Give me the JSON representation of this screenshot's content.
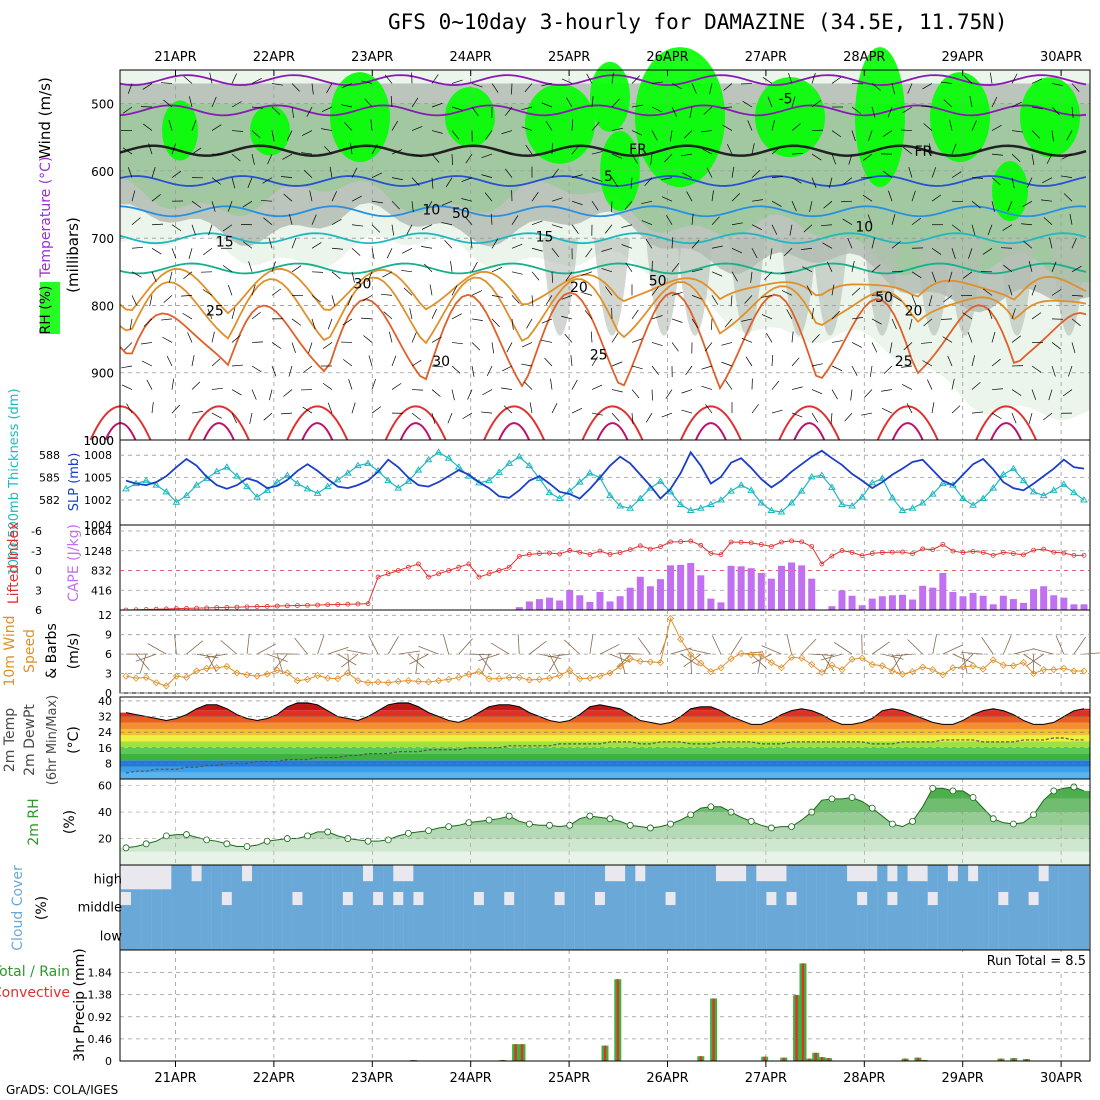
{
  "header": {
    "title": "GFS 0~10day 3-hourly for DAMAZINE (34.5E, 11.75N)",
    "footer": "GrADS: COLA/IGES"
  },
  "colors": {
    "rh_green_light": "#e8f3e8",
    "rh_green_mid": "#9ec89e",
    "rh_green_dark": "#3cb43c",
    "rh_bright": "#00ff00",
    "rh_gray": "#b4bcb4",
    "thickness": "#20b8c0",
    "slp": "#1a3ec8",
    "lifted_index": "#e03030",
    "cape": "#c070f0",
    "wind10m": "#e0902a",
    "cloud": "#6aa8d8",
    "cloud_empty": "#e8e8ee",
    "precip_total": "#3cb43c",
    "precip_conv": "#e03030"
  },
  "dates": [
    "21APR",
    "22APR",
    "23APR",
    "24APR",
    "25APR",
    "26APR",
    "27APR",
    "28APR",
    "29APR",
    "30APR"
  ],
  "chart_data": [
    {
      "type": "contour",
      "panel": "upper_air",
      "ylabel_parts": [
        "RH (%)",
        "Temperature (°C)",
        "Wind (m/s)"
      ],
      "y_axis_label": "(millibars)",
      "yticks": [
        500,
        600,
        700,
        800,
        900,
        1000
      ],
      "ylim": [
        450,
        1000
      ],
      "freezing_label": "FR",
      "contour_labels": [
        {
          "text": "-5",
          "day": 6.2,
          "p": 500
        },
        {
          "text": "FR",
          "day": 4.7,
          "p": 575
        },
        {
          "text": "FR",
          "day": 7.6,
          "p": 578
        },
        {
          "text": "5",
          "day": 4.4,
          "p": 615
        },
        {
          "text": "10",
          "day": 2.6,
          "p": 665
        },
        {
          "text": "10",
          "day": 7.0,
          "p": 690
        },
        {
          "text": "15",
          "day": 0.5,
          "p": 712
        },
        {
          "text": "15",
          "day": 3.75,
          "p": 705
        },
        {
          "text": "20",
          "day": 4.1,
          "p": 780
        },
        {
          "text": "20",
          "day": 7.5,
          "p": 815
        },
        {
          "text": "25",
          "day": 0.4,
          "p": 815
        },
        {
          "text": "25",
          "day": 4.3,
          "p": 880
        },
        {
          "text": "25",
          "day": 7.4,
          "p": 890
        },
        {
          "text": "30",
          "day": 2.7,
          "p": 890
        },
        {
          "text": "50",
          "day": 2.9,
          "p": 670
        },
        {
          "text": "30",
          "day": 1.9,
          "p": 775
        },
        {
          "text": "50",
          "day": 4.9,
          "p": 770
        },
        {
          "text": "50",
          "day": 7.2,
          "p": 795
        }
      ]
    },
    {
      "type": "line",
      "panel": "thickness_slp",
      "ylabel_left": "1000-500mb Thickness (dm)",
      "ylabel_right": "SLP (mb)",
      "yticks_left": [
        582,
        585,
        588
      ],
      "yticks_right": [
        1002,
        1005,
        1008
      ],
      "extra_tick": "1004",
      "series": [
        {
          "name": "Thickness",
          "values": [
            583.5,
            584.2,
            584.6,
            584.0,
            583.1,
            581.7,
            582.6,
            584.0,
            584.9,
            585.8,
            586.4,
            585.2,
            583.8,
            582.4,
            583.3,
            584.4,
            585.3,
            584.2,
            583.5,
            582.9,
            583.8,
            584.7,
            585.6,
            586.6,
            586.9,
            585.9,
            584.6,
            583.6,
            584.5,
            586.0,
            587.4,
            588.4,
            587.6,
            586.4,
            585.2,
            584.3,
            584.6,
            585.7,
            586.9,
            587.8,
            586.6,
            584.9,
            583.0,
            582.2,
            583.2,
            584.4,
            585.6,
            585.0,
            582.6,
            581.2,
            580.9,
            582.2,
            583.6,
            584.5,
            583.1,
            581.4,
            580.6,
            580.9,
            581.4,
            582.0,
            583.2,
            584.0,
            583.3,
            581.6,
            580.6,
            580.4,
            581.6,
            583.2,
            585.1,
            585.3,
            583.7,
            581.4,
            581.2,
            582.4,
            584.3,
            584.9,
            582.3,
            580.6,
            580.9,
            581.6,
            582.8,
            584.2,
            584.0,
            582.2,
            581.3,
            582.2,
            583.6,
            585.4,
            586.2,
            584.6,
            583.1,
            582.6,
            583.3,
            584.1,
            583.0,
            582.0
          ]
        },
        {
          "name": "SLP",
          "values": [
            1004.6,
            1004.2,
            1004.0,
            1004.4,
            1005.2,
            1006.4,
            1007.5,
            1006.6,
            1005.1,
            1004.0,
            1003.5,
            1004.0,
            1004.9,
            1004.5,
            1003.6,
            1003.9,
            1004.7,
            1005.9,
            1006.8,
            1005.9,
            1004.8,
            1003.8,
            1003.6,
            1004.0,
            1004.6,
            1005.8,
            1007.4,
            1006.4,
            1005.0,
            1004.0,
            1003.8,
            1004.4,
            1005.2,
            1006.0,
            1005.4,
            1004.4,
            1003.6,
            1002.5,
            1002.3,
            1003.3,
            1004.6,
            1005.2,
            1004.2,
            1003.1,
            1002.8,
            1002.2,
            1003.5,
            1005.0,
            1006.6,
            1007.8,
            1006.9,
            1005.4,
            1003.9,
            1002.2,
            1003.5,
            1005.6,
            1008.4,
            1006.6,
            1004.2,
            1005.1,
            1007.0,
            1007.6,
            1006.3,
            1004.8,
            1003.7,
            1004.6,
            1005.8,
            1006.8,
            1007.8,
            1008.6,
            1007.6,
            1006.7,
            1005.5,
            1004.6,
            1003.6,
            1004.4,
            1005.4,
            1006.2,
            1007.1,
            1007.4,
            1006.0,
            1004.6,
            1004.0,
            1005.4,
            1006.8,
            1007.5,
            1006.1,
            1004.4,
            1003.6,
            1003.3,
            1004.2,
            1005.2,
            1006.2,
            1007.4,
            1006.4,
            1006.2
          ]
        }
      ]
    },
    {
      "type": "bar",
      "panel": "cape_li",
      "ylabel_left": "Lifted Index",
      "ylabel_right": "CAPE (J/kg)",
      "yticks_left": [
        -6,
        -3,
        0,
        3,
        6
      ],
      "yticks_right": [
        416,
        832,
        1248,
        1664
      ],
      "cape_values": [
        0,
        0,
        0,
        0,
        0,
        0,
        0,
        0,
        0,
        0,
        0,
        0,
        0,
        0,
        0,
        0,
        0,
        0,
        0,
        0,
        0,
        0,
        0,
        0,
        0,
        0,
        0,
        0,
        0,
        0,
        0,
        0,
        0,
        0,
        0,
        0,
        0,
        0,
        0,
        60,
        180,
        230,
        260,
        200,
        420,
        310,
        170,
        380,
        180,
        290,
        470,
        700,
        500,
        650,
        940,
        950,
        990,
        730,
        240,
        160,
        930,
        920,
        880,
        780,
        660,
        930,
        1000,
        940,
        660,
        0,
        80,
        410,
        300,
        100,
        240,
        290,
        310,
        320,
        220,
        510,
        470,
        780,
        380,
        290,
        360,
        300,
        120,
        300,
        230,
        150,
        440,
        500,
        310,
        260,
        120,
        120
      ]
    },
    {
      "type": "line",
      "panel": "wind10m",
      "ylabel_parts": [
        "10m Wind",
        "Speed",
        "& Barbs",
        "(m/s)"
      ],
      "yticks": [
        0,
        3,
        6,
        9,
        12
      ],
      "series": [
        {
          "name": "10m Wind Speed",
          "values": [
            2.6,
            2.3,
            2.4,
            1.6,
            1.1,
            2.6,
            2.4,
            3.4,
            3.8,
            3.9,
            4.1,
            3.1,
            2.8,
            2.6,
            2.9,
            3.5,
            3.1,
            1.9,
            2.1,
            2.7,
            2.3,
            2.2,
            3.1,
            1.9,
            1.6,
            1.7,
            1.6,
            1.8,
            1.9,
            1.8,
            1.7,
            1.9,
            2.1,
            2.4,
            2.9,
            3.3,
            2.2,
            2.2,
            2.4,
            2.4,
            2.0,
            2.1,
            2.3,
            2.7,
            3.5,
            2.2,
            2.3,
            2.6,
            3.1,
            4.1,
            5.3,
            4.9,
            4.8,
            4.7,
            11.5,
            8.3,
            5.9,
            4.6,
            3.3,
            3.9,
            5.3,
            6.1,
            5.9,
            5.9,
            4.7,
            3.9,
            5.5,
            5.4,
            4.4,
            3.2,
            4.3,
            3.6,
            5.2,
            5.4,
            4.4,
            4.2,
            3.4,
            2.9,
            3.3,
            4.0,
            3.6,
            2.8,
            3.9,
            4.0,
            4.2,
            3.7,
            5.1,
            4.3,
            4.2,
            4.7,
            3.0,
            3.6,
            3.6,
            3.8,
            3.4,
            3.4
          ]
        }
      ]
    },
    {
      "type": "area",
      "panel": "temp2m",
      "ylabel_parts": [
        "2m Temp",
        "2m DewPt",
        "(6hr Min/Max)",
        "(°C)"
      ],
      "yticks": [
        8,
        16,
        24,
        32,
        40
      ],
      "series": [
        {
          "name": "2m Temp",
          "values": [
            34,
            33,
            32,
            31,
            30,
            31,
            33,
            36,
            38,
            38,
            36,
            33,
            31,
            30,
            31,
            33,
            37,
            39,
            39,
            38,
            35,
            32,
            31,
            30,
            32,
            35,
            38,
            39,
            39,
            37,
            34,
            32,
            30,
            29,
            31,
            34,
            37,
            38,
            38,
            37,
            34,
            32,
            30,
            29,
            30,
            33,
            37,
            38,
            37,
            36,
            33,
            30,
            29,
            28,
            29,
            32,
            36,
            37,
            37,
            35,
            32,
            30,
            28,
            28,
            30,
            33,
            35,
            36,
            35,
            33,
            30,
            28,
            28,
            29,
            31,
            35,
            36,
            35,
            33,
            31,
            29,
            28,
            28,
            30,
            33,
            35,
            36,
            35,
            33,
            30,
            28,
            28,
            29,
            32,
            35,
            36
          ]
        },
        {
          "name": "2m DewPt",
          "values": [
            3,
            4,
            4,
            5,
            5,
            5,
            6,
            6,
            7,
            7,
            8,
            8,
            8,
            9,
            9,
            9,
            10,
            10,
            10,
            11,
            11,
            11,
            12,
            12,
            13,
            13,
            13,
            14,
            14,
            14,
            15,
            15,
            15,
            15,
            16,
            16,
            16,
            16,
            17,
            17,
            17,
            17,
            17,
            18,
            18,
            18,
            18,
            18,
            19,
            19,
            19,
            18,
            18,
            19,
            19,
            19,
            18,
            18,
            18,
            19,
            19,
            19,
            19,
            18,
            18,
            18,
            19,
            19,
            19,
            19,
            19,
            19,
            19,
            19,
            18,
            18,
            18,
            19,
            19,
            19,
            19,
            20,
            20,
            20,
            20,
            19,
            19,
            19,
            19,
            20,
            20,
            20,
            21,
            21,
            20,
            20
          ]
        }
      ]
    },
    {
      "type": "area",
      "panel": "rh2m",
      "ylabel_parts": [
        "2m RH",
        "(%)"
      ],
      "yticks": [
        20,
        40,
        60
      ],
      "series": [
        {
          "name": "2m RH",
          "values": [
            13,
            14,
            16,
            18,
            22,
            23,
            23,
            21,
            19,
            18,
            16,
            14,
            14,
            15,
            18,
            19,
            20,
            20,
            22,
            25,
            25,
            22,
            20,
            19,
            18,
            18,
            19,
            22,
            24,
            25,
            26,
            28,
            29,
            30,
            32,
            33,
            34,
            35,
            37,
            33,
            31,
            30,
            30,
            29,
            30,
            35,
            37,
            36,
            35,
            33,
            30,
            29,
            28,
            29,
            31,
            34,
            38,
            43,
            44,
            44,
            40,
            36,
            33,
            30,
            28,
            29,
            29,
            34,
            40,
            49,
            50,
            50,
            51,
            48,
            43,
            37,
            31,
            29,
            33,
            44,
            58,
            58,
            56,
            56,
            51,
            43,
            35,
            32,
            31,
            32,
            38,
            49,
            56,
            58,
            59,
            56
          ]
        }
      ]
    },
    {
      "type": "heatmap",
      "panel": "cloud",
      "ylabel_parts": [
        "Cloud Cover",
        "(%)"
      ],
      "row_labels": [
        "high",
        "middle",
        "low"
      ]
    },
    {
      "type": "bar",
      "panel": "precip",
      "ylabel_parts": [
        "Total / Rain",
        "Convective",
        "3hr Precip (mm)"
      ],
      "yticks": [
        0,
        0.46,
        0.92,
        1.38,
        1.84
      ],
      "run_total_label": "Run Total = 8.5",
      "total": [
        0,
        0,
        0,
        0,
        0,
        0,
        0,
        0,
        0,
        0,
        0,
        0,
        0,
        0,
        0,
        0,
        0,
        0,
        0,
        0,
        0,
        0,
        0,
        0,
        0,
        0,
        0,
        0,
        0,
        0,
        0,
        0,
        0,
        0,
        0,
        0,
        0,
        0,
        0,
        0,
        0,
        0,
        0,
        0,
        0,
        0.02,
        0,
        0,
        0,
        0,
        0,
        0,
        0,
        0,
        0,
        0,
        0,
        0,
        0,
        0.02,
        0,
        0.35,
        0.35,
        0,
        0,
        0,
        0,
        0,
        0,
        0,
        0,
        0,
        0,
        0,
        0,
        0.32,
        0,
        1.7,
        0,
        0,
        0,
        0,
        0,
        0,
        0,
        0,
        0,
        0,
        0,
        0,
        0.1,
        0,
        1.3,
        0,
        0,
        0,
        0,
        0,
        0,
        0,
        0.09,
        0,
        0,
        0.07,
        0,
        1.37,
        2.03,
        0.05,
        0.17,
        0.08,
        0.06,
        0,
        0,
        0,
        0,
        0,
        0,
        0,
        0,
        0,
        0,
        0,
        0.05,
        0,
        0.07,
        0.02,
        0,
        0,
        0,
        0,
        0,
        0,
        0,
        0,
        0,
        0,
        0,
        0.05,
        0,
        0.06,
        0,
        0.04,
        0,
        0,
        0,
        0,
        0,
        0,
        0,
        0,
        0
      ]
    }
  ]
}
